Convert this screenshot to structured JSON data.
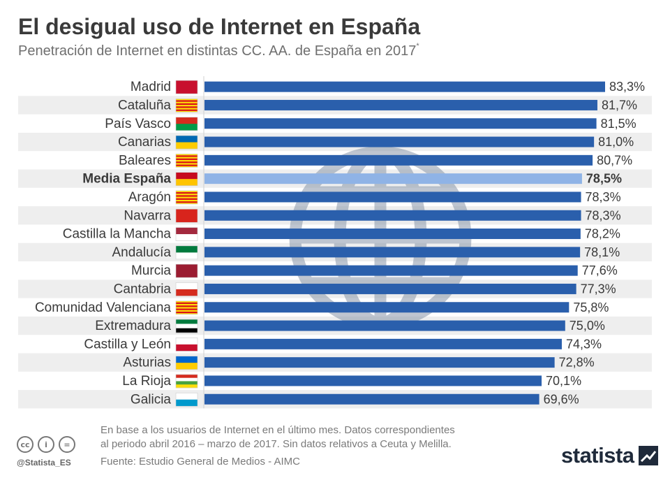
{
  "header": {
    "title": "El desigual uso de Internet en España",
    "subtitle": "Penetración de Internet en distintas CC. AA. de España en 2017",
    "subtitle_mark": "*"
  },
  "chart_data": {
    "type": "bar",
    "orientation": "horizontal",
    "title": "El desigual uso de Internet en España",
    "subtitle": "Penetración de Internet en distintas CC. AA. de España en 2017*",
    "xlabel": "",
    "ylabel": "",
    "xlim": [
      0,
      83.3
    ],
    "categories": [
      "Madrid",
      "Cataluña",
      "País Vasco",
      "Canarias",
      "Baleares",
      "Media España",
      "Aragón",
      "Navarra",
      "Castilla la Mancha",
      "Andalucía",
      "Murcia",
      "Cantabria",
      "Comunidad Valenciana",
      "Extremadura",
      "Castilla y León",
      "Asturias",
      "La Rioja",
      "Galicia"
    ],
    "values": [
      83.3,
      81.7,
      81.5,
      81.0,
      80.7,
      78.5,
      78.3,
      78.3,
      78.2,
      78.1,
      77.6,
      77.3,
      75.8,
      75.0,
      74.3,
      72.8,
      70.1,
      69.6
    ],
    "value_labels": [
      "83,3%",
      "81,7%",
      "81,5%",
      "81,0%",
      "80,7%",
      "78,5%",
      "78,3%",
      "78,3%",
      "78,2%",
      "78,1%",
      "77,6%",
      "77,3%",
      "75,8%",
      "75,0%",
      "74,3%",
      "72,8%",
      "70,1%",
      "69,6%"
    ],
    "highlight_category": "Media España",
    "bar_color": "#2a5fac",
    "highlight_color": "#8fb3e6",
    "stripe_color": "#eeeeee",
    "flag_icons": [
      "madrid-flag-icon",
      "cataluna-flag-icon",
      "pais-vasco-flag-icon",
      "canarias-flag-icon",
      "baleares-flag-icon",
      "espana-flag-icon",
      "aragon-flag-icon",
      "navarra-flag-icon",
      "castilla-la-mancha-flag-icon",
      "andalucia-flag-icon",
      "murcia-flag-icon",
      "cantabria-flag-icon",
      "comunidad-valenciana-flag-icon",
      "extremadura-flag-icon",
      "castilla-y-leon-flag-icon",
      "asturias-flag-icon",
      "la-rioja-flag-icon",
      "galicia-flag-icon"
    ],
    "background_icon": "globe-icon",
    "grid": false,
    "legend": "none"
  },
  "footer": {
    "note_line1": "En base a los usuarios de Internet en el último mes. Datos correspondientes",
    "note_line2": "al periodo abril 2016 – marzo de 2017. Sin datos relativos a Ceuta y Melilla.",
    "source": "Fuente: Estudio General de Medios - AIMC",
    "handle": "@Statista_ES",
    "cc_labels": [
      "cc",
      "i",
      "="
    ],
    "brand": "statista"
  }
}
